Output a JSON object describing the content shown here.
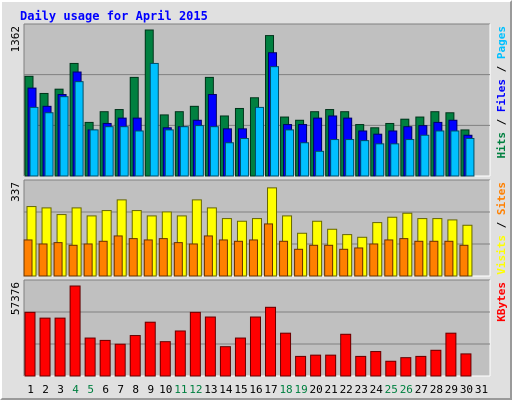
{
  "chart_data": {
    "type": "bar",
    "title": "Daily usage for April 2015",
    "categories": [
      "1",
      "2",
      "3",
      "4",
      "5",
      "6",
      "7",
      "8",
      "9",
      "10",
      "11",
      "12",
      "13",
      "14",
      "15",
      "16",
      "17",
      "18",
      "19",
      "20",
      "21",
      "22",
      "23",
      "24",
      "25",
      "26",
      "27",
      "28",
      "29",
      "30",
      "31"
    ],
    "weekend_days": [
      4,
      5,
      11,
      12,
      18,
      19,
      25,
      26
    ],
    "colors": {
      "hits": "#008040",
      "files": "#0000ff",
      "pages": "#00c0ff",
      "visits": "#ffff00",
      "sites": "#ff8000",
      "kbytes": "#ff0000",
      "weekend_label": "#008040",
      "panel_bg": "#c0c0c0",
      "grid": "#808080"
    },
    "panels": [
      {
        "ymax_label": "1362",
        "legend": [
          {
            "text": "Hits",
            "color": "#008040"
          },
          {
            "text": " / ",
            "color": "#000000"
          },
          {
            "text": "Files",
            "color": "#0000ff"
          },
          {
            "text": " / ",
            "color": "#000000"
          },
          {
            "text": "Pages",
            "color": "#00c0ff"
          }
        ],
        "ymax": 1362,
        "series": [
          {
            "name": "Hits",
            "color": "#008040",
            "values": [
              930,
              770,
              810,
              1050,
              500,
              600,
              620,
              920,
              1362,
              570,
              600,
              650,
              920,
              560,
              630,
              730,
              1310,
              550,
              520,
              600,
              620,
              600,
              480,
              450,
              490,
              530,
              550,
              600,
              590,
              430,
              0
            ]
          },
          {
            "name": "Files",
            "color": "#0000ff",
            "values": [
              820,
              650,
              760,
              970,
              430,
              490,
              540,
              540,
              0,
              450,
              460,
              520,
              760,
              440,
              440,
              0,
              1150,
              480,
              480,
              540,
              560,
              540,
              420,
              390,
              420,
              460,
              470,
              500,
              520,
              380,
              0
            ]
          },
          {
            "name": "Pages",
            "color": "#00c0ff",
            "values": [
              640,
              590,
              740,
              880,
              430,
              460,
              460,
              420,
              1050,
              430,
              460,
              470,
              460,
              310,
              350,
              640,
              1020,
              430,
              310,
              230,
              340,
              340,
              330,
              300,
              300,
              340,
              380,
              420,
              420,
              350,
              0
            ]
          }
        ]
      },
      {
        "ymax_label": "337",
        "legend": [
          {
            "text": "Visits",
            "color": "#ffff00"
          },
          {
            "text": " / ",
            "color": "#000000"
          },
          {
            "text": "Sites",
            "color": "#ff8000"
          }
        ],
        "ymax": 337,
        "series": [
          {
            "name": "Visits",
            "color": "#ffff00",
            "values": [
              260,
              255,
              230,
              255,
              225,
              245,
              285,
              245,
              225,
              240,
              225,
              285,
              255,
              215,
              205,
              215,
              330,
              225,
              160,
              205,
              175,
              155,
              145,
              200,
              220,
              235,
              215,
              215,
              210,
              190,
              0
            ]
          },
          {
            "name": "Sites",
            "color": "#ff8000",
            "values": [
              135,
              120,
              125,
              115,
              120,
              130,
              150,
              140,
              135,
              140,
              125,
              120,
              150,
              135,
              130,
              135,
              195,
              130,
              100,
              115,
              115,
              100,
              105,
              120,
              135,
              140,
              130,
              130,
              130,
              115,
              0
            ]
          }
        ]
      },
      {
        "ymax_label": "57376",
        "legend": [
          {
            "text": "KBytes",
            "color": "#ff0000"
          }
        ],
        "ymax": 57376,
        "series": [
          {
            "name": "KBytes",
            "color": "#ff0000",
            "values": [
              40600,
              36900,
              36900,
              57376,
              24200,
              22700,
              20300,
              25800,
              34300,
              21900,
              28700,
              40600,
              37600,
              18700,
              24200,
              37600,
              43800,
              27300,
              12500,
              13300,
              13300,
              26600,
              12500,
              15600,
              9400,
              11700,
              12500,
              16400,
              27300,
              14100,
              0
            ]
          }
        ]
      }
    ]
  }
}
